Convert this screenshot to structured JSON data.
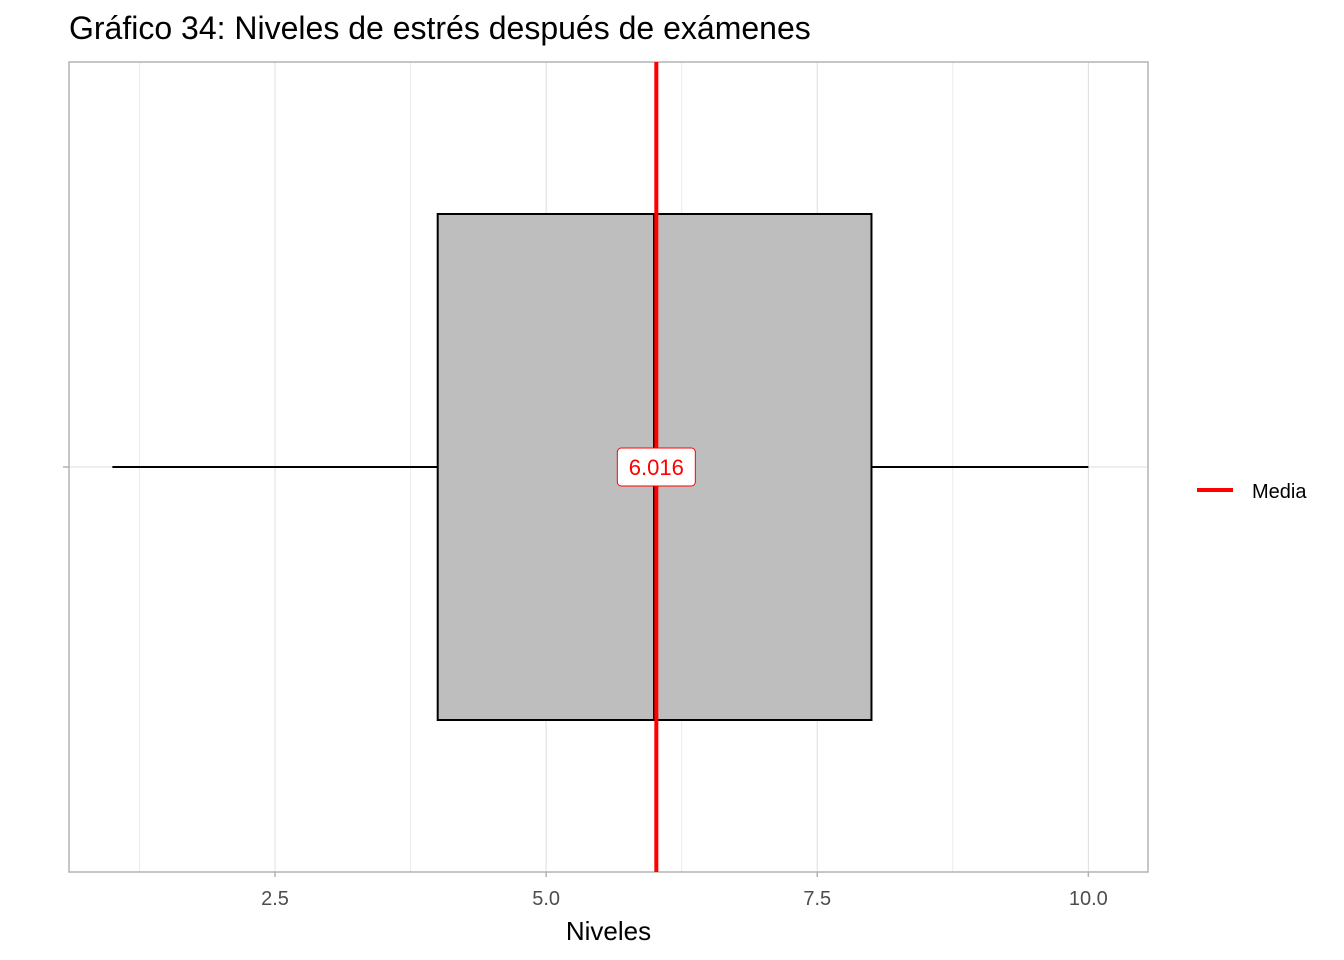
{
  "chart_data": {
    "type": "boxplot",
    "title": "Gráfico 34: Niveles de estrés después de exámenes",
    "xlabel": "Niveles",
    "ylabel": "",
    "xlim": [
      0.6,
      10.55
    ],
    "x_ticks": [
      2.5,
      5.0,
      7.5,
      10.0
    ],
    "x_tick_labels": [
      "2.5",
      "5.0",
      "7.5",
      "10.0"
    ],
    "grid": true,
    "box": {
      "min": 1,
      "q1": 4,
      "median": 6,
      "q3": 8,
      "max": 10,
      "fill": "#bebebe",
      "outline": "#000000"
    },
    "mean": {
      "value": 6.016,
      "label": "6.016",
      "color": "#ff0000"
    },
    "legend": {
      "position": "right",
      "entries": [
        {
          "label": "Media",
          "color": "#ff0000",
          "shape": "line"
        }
      ]
    }
  }
}
